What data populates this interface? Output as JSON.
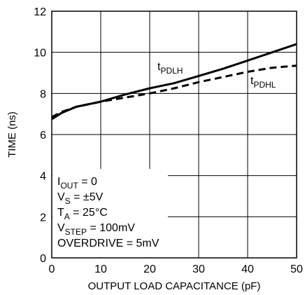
{
  "chart_data": {
    "type": "line",
    "xlabel": "OUTPUT LOAD CAPACITANCE (pF)",
    "ylabel": "TIME (ns)",
    "xlim": [
      0,
      50
    ],
    "ylim": [
      0,
      12
    ],
    "xticks": [
      0,
      10,
      20,
      30,
      40,
      50
    ],
    "yticks": [
      0,
      2,
      4,
      6,
      8,
      10,
      12
    ],
    "grid": true,
    "series": [
      {
        "name": "tPDLH",
        "label_main": "t",
        "label_sub": "PDLH",
        "style": "solid",
        "x": [
          0,
          2,
          5,
          10,
          15,
          20,
          25,
          30,
          35,
          40,
          45,
          50
        ],
        "y": [
          6.75,
          7.05,
          7.35,
          7.6,
          7.95,
          8.25,
          8.5,
          8.85,
          9.2,
          9.6,
          10.0,
          10.4
        ]
      },
      {
        "name": "tPDHL",
        "label_main": "t",
        "label_sub": "PDHL",
        "style": "dashed",
        "x": [
          0,
          2,
          5,
          10,
          15,
          20,
          25,
          30,
          35,
          40,
          45,
          50
        ],
        "y": [
          6.85,
          7.1,
          7.35,
          7.6,
          7.8,
          8.0,
          8.25,
          8.55,
          8.8,
          9.05,
          9.25,
          9.35
        ]
      }
    ],
    "conditions": [
      {
        "main": "I",
        "sub": "OUT",
        "rest": " = 0"
      },
      {
        "main": "V",
        "sub": "S",
        "rest": " = ±5V"
      },
      {
        "main": "T",
        "sub": "A",
        "rest": " = 25°C"
      },
      {
        "main": "V",
        "sub": "STEP",
        "rest": " = 100mV"
      },
      {
        "main": "OVERDRIVE = 5mV",
        "sub": "",
        "rest": ""
      }
    ]
  }
}
